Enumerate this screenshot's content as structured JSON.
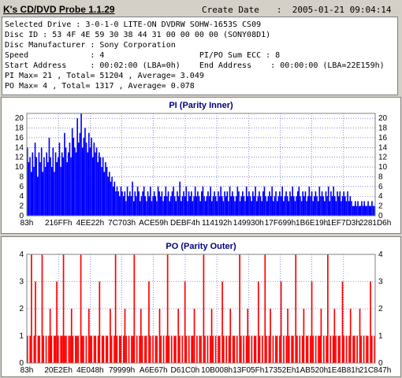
{
  "app": {
    "title": "K's CD/DVD Probe 1.1.29"
  },
  "header": {
    "create_date_label": "Create Date",
    "create_date_value": ":  2005-01-21 09:04:14"
  },
  "info_lines": [
    "Selected Drive : 3-0-1-0 LITE-ON DVDRW SOHW-1653S CS09",
    "Disc ID : 53 4F 4E 59 30 38 44 31 00 00 00 00 (SONY08D1)",
    "Disc Manufacturer : Sony Corporation",
    "Speed             : 4                    PI/PO Sum ECC : 8",
    "Start Address     : 00:02:00 (LBA=0h)    End Address    : 00:00:00 (LBA=22E159h)",
    "PI Max= 21 , Total= 51204 , Average= 3.049",
    "PO Max= 4 , Total= 1317 , Average= 0.078"
  ],
  "pi_chart": {
    "title": "PI (Parity Inner)",
    "bar_color": "#0000ff",
    "chart_data": {
      "type": "bar",
      "title": "PI (Parity Inner)",
      "xlabel": "",
      "ylabel": "",
      "ylim": [
        0,
        21
      ],
      "yticks": [
        0,
        2,
        4,
        6,
        8,
        10,
        12,
        14,
        16,
        18,
        20
      ],
      "xtick_labels": [
        "83h",
        "216FFh",
        "4EE22h",
        "7C703h",
        "ACE59h",
        "DEBF4h",
        "114192h",
        "149930h",
        "17F699h",
        "1B6E19h",
        "1EF7D3h",
        "2281D6h"
      ],
      "grid": true,
      "values": [
        14,
        11,
        12,
        9,
        13,
        10,
        15,
        12,
        8,
        13,
        11,
        14,
        9,
        12,
        10,
        13,
        11,
        16,
        12,
        10,
        14,
        9,
        13,
        11,
        12,
        15,
        10,
        13,
        12,
        17,
        14,
        11,
        13,
        15,
        12,
        18,
        16,
        14,
        13,
        20,
        15,
        17,
        21,
        14,
        16,
        18,
        15,
        13,
        17,
        14,
        16,
        12,
        15,
        13,
        14,
        11,
        13,
        12,
        10,
        12,
        9,
        11,
        10,
        8,
        9,
        7,
        8,
        6,
        7,
        5,
        6,
        5,
        4,
        6,
        5,
        4,
        5,
        3,
        6,
        4,
        5,
        4,
        7,
        3,
        5,
        4,
        6,
        5,
        3,
        4,
        5,
        6,
        4,
        3,
        5,
        4,
        6,
        3,
        4,
        5,
        4,
        3,
        6,
        5,
        4,
        5,
        3,
        4,
        6,
        4,
        5,
        3,
        4,
        5,
        6,
        4,
        3,
        5,
        4,
        7,
        3,
        4,
        5,
        4,
        6,
        3,
        5,
        4,
        5,
        3,
        4,
        6,
        4,
        5,
        4,
        3,
        5,
        6,
        4,
        3,
        4,
        5,
        4,
        6,
        3,
        4,
        5,
        4,
        3,
        5,
        4,
        6,
        4,
        3,
        5,
        4,
        5,
        3,
        6,
        4,
        5,
        4,
        3,
        4,
        6,
        5,
        3,
        4,
        5,
        4,
        3,
        6,
        4,
        5,
        4,
        3,
        5,
        4,
        6,
        3,
        4,
        5,
        4,
        3,
        5,
        6,
        4,
        3,
        4,
        5,
        4,
        6,
        3,
        4,
        5,
        3,
        4,
        5,
        4,
        6,
        3,
        4,
        5,
        4,
        3,
        5,
        4,
        6,
        4,
        3,
        4,
        5,
        6,
        4,
        3,
        5,
        4,
        5,
        3,
        4,
        6,
        4,
        5,
        3,
        4,
        5,
        4,
        3,
        6,
        4,
        5,
        4,
        3,
        5,
        4,
        6,
        3,
        5,
        4,
        6,
        4,
        3,
        5,
        4,
        5,
        3,
        4,
        5,
        4,
        3,
        5,
        3,
        4,
        3,
        2,
        2,
        3,
        2,
        3,
        2,
        2,
        3,
        2,
        3,
        2,
        2,
        3,
        2,
        2,
        3,
        2,
        2
      ]
    }
  },
  "po_chart": {
    "title": "PO (Parity Outer)",
    "bar_color": "#ff0000",
    "chart_data": {
      "type": "bar",
      "title": "PO (Parity Outer)",
      "xlabel": "",
      "ylabel": "",
      "ylim": [
        0,
        4
      ],
      "yticks": [
        0,
        1,
        2,
        3,
        4
      ],
      "xtick_labels": [
        "83h",
        "20E2Eh",
        "4E048h",
        "79999h",
        "A6E67h",
        "D61C0h",
        "10B008h",
        "13F05Fh",
        "17352Eh",
        "1AB520h",
        "1E4B81h",
        "21C847h"
      ],
      "grid": true,
      "values": [
        1,
        0,
        1,
        4,
        0,
        1,
        3,
        0,
        1,
        1,
        0,
        4,
        1,
        0,
        1,
        0,
        1,
        2,
        1,
        0,
        1,
        1,
        3,
        1,
        0,
        1,
        1,
        4,
        1,
        1,
        0,
        1,
        1,
        2,
        1,
        0,
        1,
        1,
        1,
        0,
        4,
        1,
        1,
        0,
        1,
        0,
        2,
        1,
        1,
        0,
        1,
        1,
        0,
        1,
        3,
        0,
        1,
        1,
        0,
        1,
        1,
        0,
        2,
        1,
        0,
        1,
        4,
        1,
        0,
        1,
        1,
        0,
        1,
        2,
        1,
        0,
        1,
        0,
        1,
        1,
        4,
        0,
        1,
        0,
        1,
        2,
        1,
        0,
        1,
        1,
        0,
        3,
        1,
        0,
        1,
        0,
        1,
        1,
        0,
        2,
        1,
        0,
        1,
        0,
        1,
        4,
        1,
        0,
        1,
        0,
        1,
        1,
        0,
        2,
        1,
        0,
        1,
        0,
        3,
        1,
        0,
        1,
        0,
        1,
        1,
        2,
        0,
        1,
        0,
        1,
        1,
        0,
        4,
        1,
        0,
        1,
        0,
        1,
        2,
        1,
        0,
        1,
        0,
        1,
        1,
        0,
        3,
        1,
        0,
        1,
        0,
        1,
        2,
        0,
        1,
        1,
        0,
        1,
        0,
        4,
        1,
        0,
        1,
        0,
        1,
        2,
        1,
        0,
        1,
        0,
        1,
        1,
        0,
        3,
        1,
        0,
        1,
        0,
        4,
        1,
        0,
        1,
        2,
        0,
        1,
        0,
        1,
        1,
        0,
        1,
        3,
        0,
        1,
        0,
        1,
        2,
        1,
        0,
        1,
        1,
        0,
        4,
        1,
        0,
        1,
        0,
        1,
        2,
        0,
        1,
        1,
        0,
        1,
        3,
        1,
        0,
        1,
        0,
        1,
        1,
        2,
        0,
        1,
        0,
        1,
        4,
        0,
        1,
        0,
        1,
        2,
        1,
        0,
        1,
        1,
        0,
        3,
        1,
        0,
        1,
        0,
        1,
        2,
        0,
        1,
        1,
        0,
        1,
        0,
        2,
        1,
        0,
        1,
        0,
        1,
        1,
        0,
        3,
        1,
        0,
        1
      ]
    }
  }
}
